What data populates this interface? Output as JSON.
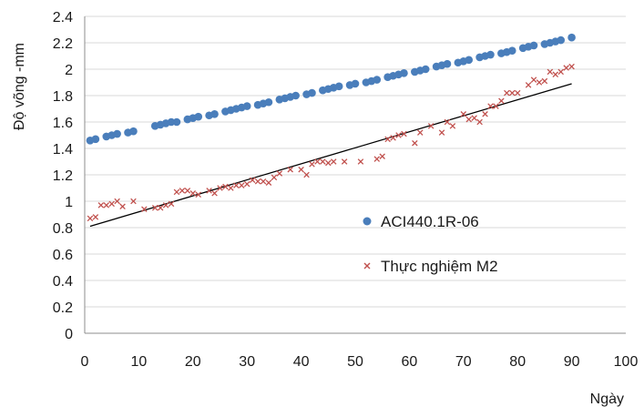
{
  "chart_data": {
    "type": "scatter",
    "title": "",
    "xlabel": "Ngày",
    "ylabel": "Độ võng -mm",
    "xlim": [
      0,
      100
    ],
    "ylim": [
      0,
      2.4
    ],
    "xticks": [
      "0",
      "10",
      "20",
      "30",
      "40",
      "50",
      "60",
      "70",
      "80",
      "90",
      "100"
    ],
    "yticks": [
      "0",
      "0.2",
      "0.4",
      "0.6",
      "0.8",
      "1",
      "1.2",
      "1.4",
      "1.6",
      "1.8",
      "2",
      "2.2",
      "2.4"
    ],
    "grid": "horizontal",
    "legend_position": "right-middle",
    "series": [
      {
        "name": "ACI440.1R-06",
        "marker": "circle",
        "color": "#4a7ebb",
        "x": [
          1,
          2,
          4,
          5,
          6,
          8,
          9,
          13,
          14,
          15,
          16,
          17,
          19,
          20,
          21,
          23,
          24,
          26,
          27,
          28,
          29,
          30,
          32,
          33,
          34,
          36,
          37,
          38,
          39,
          41,
          42,
          44,
          45,
          46,
          47,
          49,
          50,
          52,
          53,
          54,
          56,
          57,
          58,
          59,
          61,
          62,
          63,
          65,
          66,
          67,
          69,
          70,
          71,
          73,
          74,
          75,
          77,
          78,
          79,
          81,
          82,
          83,
          85,
          86,
          87,
          88,
          90
        ],
        "y": [
          1.46,
          1.47,
          1.49,
          1.5,
          1.51,
          1.52,
          1.53,
          1.57,
          1.58,
          1.59,
          1.6,
          1.6,
          1.62,
          1.63,
          1.64,
          1.65,
          1.66,
          1.68,
          1.69,
          1.7,
          1.71,
          1.72,
          1.73,
          1.74,
          1.75,
          1.77,
          1.78,
          1.79,
          1.8,
          1.81,
          1.82,
          1.84,
          1.85,
          1.86,
          1.87,
          1.88,
          1.89,
          1.9,
          1.91,
          1.92,
          1.94,
          1.95,
          1.96,
          1.97,
          1.98,
          1.99,
          2.0,
          2.02,
          2.03,
          2.04,
          2.05,
          2.06,
          2.07,
          2.09,
          2.1,
          2.11,
          2.12,
          2.13,
          2.14,
          2.16,
          2.17,
          2.18,
          2.19,
          2.2,
          2.21,
          2.22,
          2.24
        ]
      },
      {
        "name": "Thực nghiệm M2",
        "marker": "x",
        "color": "#c0504d",
        "x": [
          1,
          2,
          3,
          4,
          5,
          6,
          7,
          9,
          11,
          13,
          14,
          15,
          16,
          17,
          18,
          19,
          20,
          21,
          23,
          24,
          25,
          26,
          27,
          28,
          29,
          30,
          31,
          32,
          33,
          34,
          35,
          36,
          38,
          40,
          41,
          42,
          43,
          44,
          45,
          46,
          48,
          51,
          54,
          55,
          56,
          57,
          58,
          59,
          61,
          62,
          64,
          66,
          67,
          68,
          70,
          71,
          72,
          73,
          74,
          75,
          76,
          77,
          78,
          79,
          80,
          82,
          83,
          84,
          85,
          86,
          87,
          88,
          89,
          90
        ],
        "y": [
          0.87,
          0.88,
          0.97,
          0.97,
          0.98,
          1.0,
          0.96,
          1.0,
          0.94,
          0.95,
          0.95,
          0.97,
          0.98,
          1.07,
          1.08,
          1.08,
          1.06,
          1.05,
          1.08,
          1.06,
          1.1,
          1.11,
          1.1,
          1.12,
          1.12,
          1.13,
          1.16,
          1.15,
          1.15,
          1.14,
          1.18,
          1.21,
          1.24,
          1.24,
          1.2,
          1.28,
          1.3,
          1.3,
          1.29,
          1.3,
          1.3,
          1.3,
          1.32,
          1.34,
          1.47,
          1.48,
          1.5,
          1.51,
          1.44,
          1.52,
          1.57,
          1.52,
          1.6,
          1.57,
          1.66,
          1.62,
          1.63,
          1.6,
          1.66,
          1.72,
          1.72,
          1.76,
          1.82,
          1.82,
          1.82,
          1.88,
          1.92,
          1.9,
          1.91,
          1.98,
          1.96,
          1.98,
          2.01,
          2.02
        ]
      }
    ],
    "trendline": {
      "series": "Thực nghiệm M2",
      "type": "linear",
      "color": "#000000",
      "x": [
        1,
        90
      ],
      "y": [
        0.81,
        1.89
      ]
    }
  }
}
